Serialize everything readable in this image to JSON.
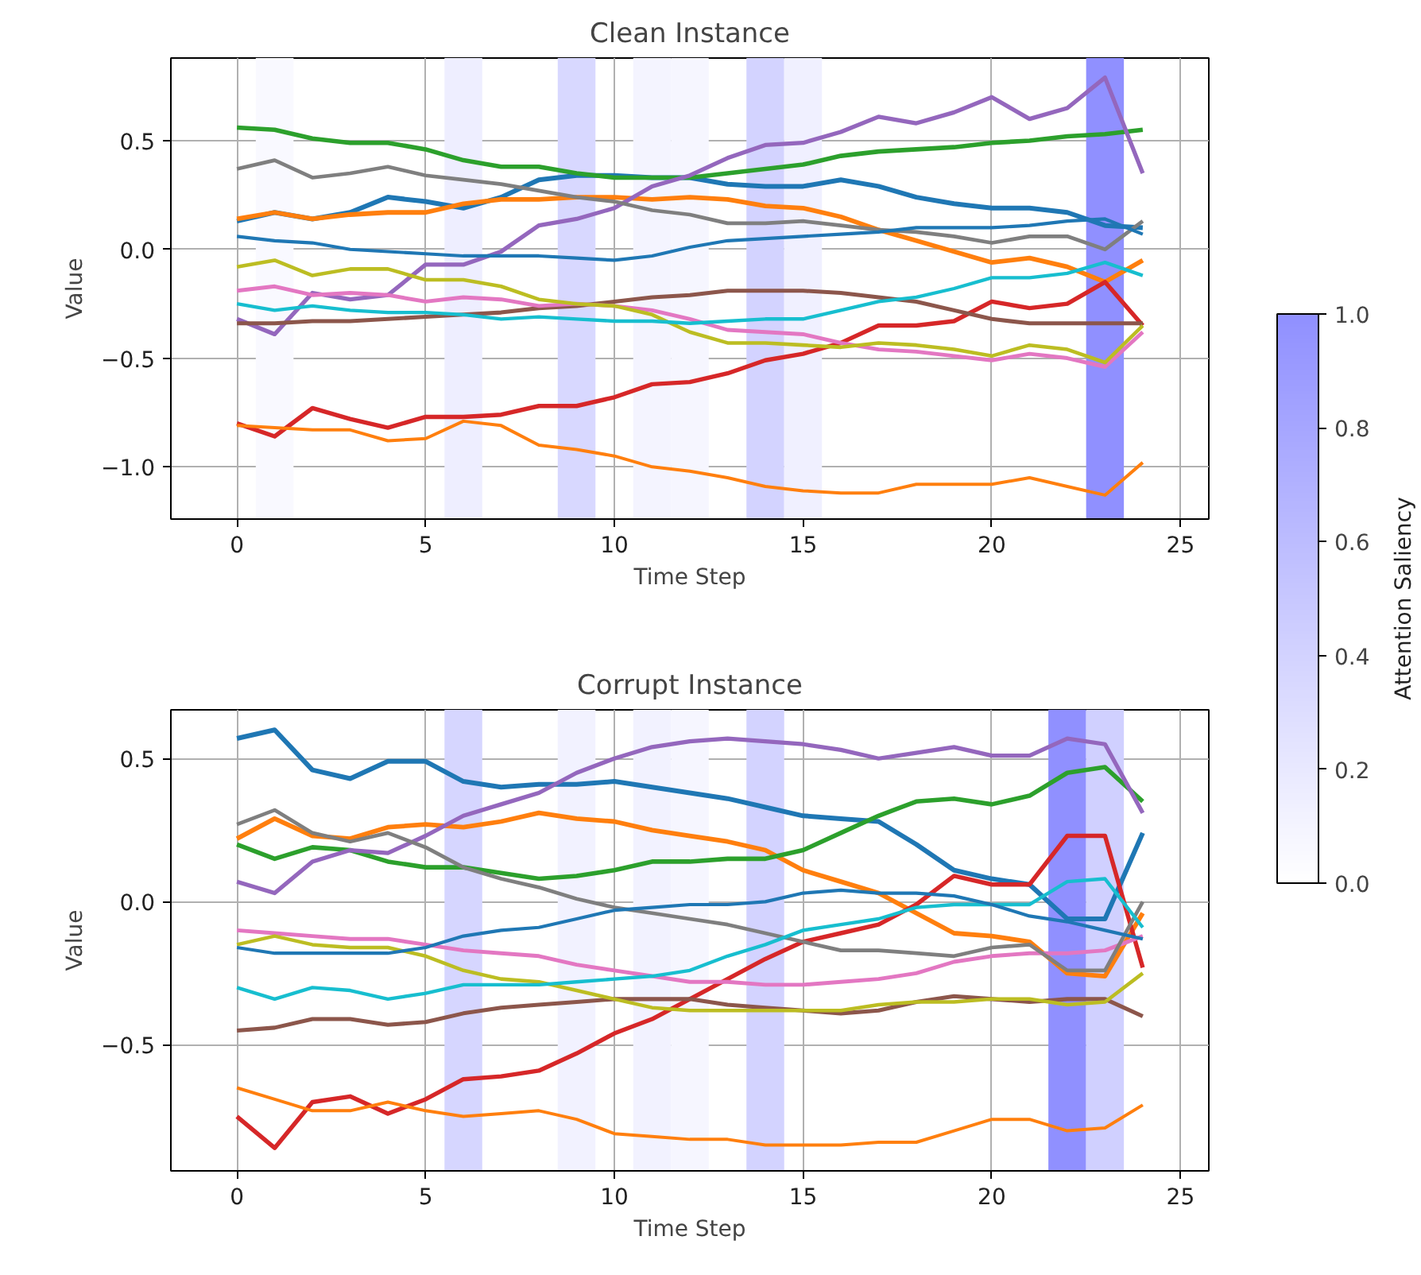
{
  "chart_data": [
    {
      "type": "line",
      "title": "Clean Instance",
      "xlabel": "Time Step",
      "ylabel": "Value",
      "clabel": "Attention Saliency",
      "clim": [
        0,
        1
      ],
      "cticks": [
        {
          "value": 0,
          "label": "0.0"
        },
        {
          "value": 0.2,
          "label": "0.2"
        },
        {
          "value": 0.4,
          "label": "0.4"
        },
        {
          "value": 0.6,
          "label": "0.6"
        },
        {
          "value": 0.8,
          "label": "0.8"
        },
        {
          "value": 1,
          "label": "1.0"
        }
      ],
      "x": [
        0,
        1,
        2,
        3,
        4,
        5,
        6,
        7,
        8,
        9,
        10,
        11,
        12,
        13,
        14,
        15,
        16,
        17,
        18,
        19,
        20,
        21,
        22,
        23,
        24
      ],
      "xlim": [
        -1.75,
        25.75
      ],
      "xticks": [
        0,
        5,
        10,
        15,
        20,
        25
      ],
      "ylim": [
        -1.24,
        0.88
      ],
      "yticks": [
        {
          "value": -1,
          "label": "−1.0"
        },
        {
          "value": -0.5,
          "label": "−0.5"
        },
        {
          "value": 0,
          "label": "0.0"
        },
        {
          "value": 0.5,
          "label": "0.5"
        }
      ],
      "grid": true,
      "line_style": "solid",
      "marker": "none",
      "bands": [
        {
          "axis": "x",
          "from": 0.5,
          "to": 1.5,
          "color": "#f9f9ff"
        },
        {
          "axis": "x",
          "from": 5.5,
          "to": 6.5,
          "color": "#eeeeff"
        },
        {
          "axis": "x",
          "from": 8.5,
          "to": 9.5,
          "color": "#d8d8ff"
        },
        {
          "axis": "x",
          "from": 10.5,
          "to": 11.5,
          "color": "#f4f4ff"
        },
        {
          "axis": "x",
          "from": 11.5,
          "to": 12.5,
          "color": "#f6f6ff"
        },
        {
          "axis": "x",
          "from": 13.5,
          "to": 14.5,
          "color": "#d3d3ff"
        },
        {
          "axis": "x",
          "from": 14.5,
          "to": 15.5,
          "color": "#f0f0ff"
        },
        {
          "axis": "x",
          "from": 22.5,
          "to": 23.5,
          "color": "#9090ff"
        }
      ],
      "series": [
        {
          "color": "#1f77b4",
          "values": [
            0.13,
            0.17,
            0.14,
            0.17,
            0.24,
            0.22,
            0.19,
            0.24,
            0.32,
            0.34,
            0.34,
            0.33,
            0.33,
            0.3,
            0.29,
            0.29,
            0.32,
            0.29,
            0.24,
            0.21,
            0.19,
            0.19,
            0.17,
            0.11,
            0.1
          ]
        },
        {
          "color": "#ff7f0e",
          "values": [
            0.14,
            0.17,
            0.14,
            0.16,
            0.17,
            0.17,
            0.21,
            0.23,
            0.23,
            0.24,
            0.24,
            0.23,
            0.24,
            0.23,
            0.2,
            0.19,
            0.15,
            0.09,
            0.04,
            -0.01,
            -0.06,
            -0.04,
            -0.08,
            -0.15,
            -0.05
          ]
        },
        {
          "color": "#2ca02c",
          "values": [
            0.56,
            0.55,
            0.51,
            0.49,
            0.49,
            0.46,
            0.41,
            0.38,
            0.38,
            0.35,
            0.33,
            0.33,
            0.33,
            0.35,
            0.37,
            0.39,
            0.43,
            0.45,
            0.46,
            0.47,
            0.49,
            0.5,
            0.52,
            0.53,
            0.55
          ]
        },
        {
          "color": "#d62728",
          "values": [
            -0.8,
            -0.86,
            -0.73,
            -0.78,
            -0.82,
            -0.77,
            -0.77,
            -0.76,
            -0.72,
            -0.72,
            -0.68,
            -0.62,
            -0.61,
            -0.57,
            -0.51,
            -0.48,
            -0.43,
            -0.35,
            -0.35,
            -0.33,
            -0.24,
            -0.27,
            -0.25,
            -0.15,
            -0.35
          ]
        },
        {
          "color": "#9467bd",
          "values": [
            -0.32,
            -0.39,
            -0.2,
            -0.23,
            -0.21,
            -0.07,
            -0.07,
            -0.01,
            0.11,
            0.14,
            0.19,
            0.29,
            0.34,
            0.42,
            0.48,
            0.49,
            0.54,
            0.61,
            0.58,
            0.63,
            0.7,
            0.6,
            0.65,
            0.79,
            0.35
          ]
        },
        {
          "color": "#8c564b",
          "values": [
            -0.34,
            -0.34,
            -0.33,
            -0.33,
            -0.32,
            -0.31,
            -0.3,
            -0.29,
            -0.27,
            -0.26,
            -0.24,
            -0.22,
            -0.21,
            -0.19,
            -0.19,
            -0.19,
            -0.2,
            -0.22,
            -0.24,
            -0.28,
            -0.32,
            -0.34,
            -0.34,
            -0.34,
            -0.34
          ]
        },
        {
          "color": "#e377c2",
          "values": [
            -0.19,
            -0.17,
            -0.21,
            -0.2,
            -0.21,
            -0.24,
            -0.22,
            -0.23,
            -0.26,
            -0.25,
            -0.26,
            -0.28,
            -0.32,
            -0.37,
            -0.38,
            -0.39,
            -0.43,
            -0.46,
            -0.47,
            -0.49,
            -0.51,
            -0.48,
            -0.5,
            -0.54,
            -0.38
          ]
        },
        {
          "color": "#7f7f7f",
          "values": [
            0.37,
            0.41,
            0.33,
            0.35,
            0.38,
            0.34,
            0.32,
            0.3,
            0.27,
            0.24,
            0.22,
            0.18,
            0.16,
            0.12,
            0.12,
            0.13,
            0.11,
            0.09,
            0.08,
            0.06,
            0.03,
            0.06,
            0.06,
            0.0,
            0.13
          ]
        },
        {
          "color": "#bcbd22",
          "values": [
            -0.08,
            -0.05,
            -0.12,
            -0.09,
            -0.09,
            -0.14,
            -0.14,
            -0.17,
            -0.23,
            -0.25,
            -0.26,
            -0.3,
            -0.38,
            -0.43,
            -0.43,
            -0.44,
            -0.45,
            -0.43,
            -0.44,
            -0.46,
            -0.49,
            -0.44,
            -0.46,
            -0.52,
            -0.35
          ]
        },
        {
          "color": "#17becf",
          "values": [
            -0.25,
            -0.28,
            -0.26,
            -0.28,
            -0.29,
            -0.29,
            -0.3,
            -0.32,
            -0.31,
            -0.32,
            -0.33,
            -0.33,
            -0.34,
            -0.33,
            -0.32,
            -0.32,
            -0.28,
            -0.24,
            -0.22,
            -0.18,
            -0.13,
            -0.13,
            -0.11,
            -0.06,
            -0.12
          ]
        },
        {
          "color": "#1f77b4",
          "values": [
            0.06,
            0.04,
            0.03,
            0.0,
            -0.01,
            -0.02,
            -0.03,
            -0.03,
            -0.03,
            -0.04,
            -0.05,
            -0.03,
            0.01,
            0.04,
            0.05,
            0.06,
            0.07,
            0.08,
            0.1,
            0.1,
            0.1,
            0.11,
            0.13,
            0.14,
            0.07
          ]
        },
        {
          "color": "#ff7f0e",
          "values": [
            -0.81,
            -0.82,
            -0.83,
            -0.83,
            -0.88,
            -0.87,
            -0.79,
            -0.81,
            -0.9,
            -0.92,
            -0.95,
            -1.0,
            -1.02,
            -1.05,
            -1.09,
            -1.11,
            -1.12,
            -1.12,
            -1.08,
            -1.08,
            -1.08,
            -1.05,
            -1.09,
            -1.13,
            -0.98
          ]
        }
      ]
    },
    {
      "type": "line",
      "title": "Corrupt Instance",
      "xlabel": "Time Step",
      "ylabel": "Value",
      "x": [
        0,
        1,
        2,
        3,
        4,
        5,
        6,
        7,
        8,
        9,
        10,
        11,
        12,
        13,
        14,
        15,
        16,
        17,
        18,
        19,
        20,
        21,
        22,
        23,
        24
      ],
      "xlim": [
        -1.75,
        25.75
      ],
      "xticks": [
        0,
        5,
        10,
        15,
        20,
        25
      ],
      "ylim": [
        -0.94,
        0.67
      ],
      "yticks": [
        {
          "value": -0.5,
          "label": "−0.5"
        },
        {
          "value": 0,
          "label": "0.0"
        },
        {
          "value": 0.5,
          "label": "0.5"
        }
      ],
      "grid": true,
      "line_style": "solid",
      "marker": "none",
      "bands": [
        {
          "axis": "x",
          "from": 5.5,
          "to": 6.5,
          "color": "#d6d6ff"
        },
        {
          "axis": "x",
          "from": 8.5,
          "to": 9.5,
          "color": "#f2f2ff"
        },
        {
          "axis": "x",
          "from": 10.5,
          "to": 11.5,
          "color": "#f2f2ff"
        },
        {
          "axis": "x",
          "from": 11.5,
          "to": 12.5,
          "color": "#f6f6ff"
        },
        {
          "axis": "x",
          "from": 13.5,
          "to": 14.5,
          "color": "#d3d3ff"
        },
        {
          "axis": "x",
          "from": 21.5,
          "to": 22.5,
          "color": "#9090ff"
        },
        {
          "axis": "x",
          "from": 22.5,
          "to": 23.5,
          "color": "#d0d0ff"
        }
      ],
      "series": [
        {
          "color": "#1f77b4",
          "values": [
            0.57,
            0.6,
            0.46,
            0.43,
            0.49,
            0.49,
            0.42,
            0.4,
            0.41,
            0.41,
            0.42,
            0.4,
            0.38,
            0.36,
            0.33,
            0.3,
            0.29,
            0.28,
            0.2,
            0.11,
            0.08,
            0.06,
            -0.06,
            -0.06,
            0.24
          ]
        },
        {
          "color": "#ff7f0e",
          "values": [
            0.22,
            0.29,
            0.23,
            0.22,
            0.26,
            0.27,
            0.26,
            0.28,
            0.31,
            0.29,
            0.28,
            0.25,
            0.23,
            0.21,
            0.18,
            0.11,
            0.07,
            0.03,
            -0.04,
            -0.11,
            -0.12,
            -0.14,
            -0.25,
            -0.26,
            -0.04
          ]
        },
        {
          "color": "#2ca02c",
          "values": [
            0.2,
            0.15,
            0.19,
            0.18,
            0.14,
            0.12,
            0.12,
            0.1,
            0.08,
            0.09,
            0.11,
            0.14,
            0.14,
            0.15,
            0.15,
            0.18,
            0.24,
            0.3,
            0.35,
            0.36,
            0.34,
            0.37,
            0.45,
            0.47,
            0.35
          ]
        },
        {
          "color": "#d62728",
          "values": [
            -0.75,
            -0.86,
            -0.7,
            -0.68,
            -0.74,
            -0.69,
            -0.62,
            -0.61,
            -0.59,
            -0.53,
            -0.46,
            -0.41,
            -0.34,
            -0.27,
            -0.2,
            -0.14,
            -0.11,
            -0.08,
            -0.01,
            0.09,
            0.06,
            0.06,
            0.23,
            0.23,
            -0.23
          ]
        },
        {
          "color": "#9467bd",
          "values": [
            0.07,
            0.03,
            0.14,
            0.18,
            0.17,
            0.23,
            0.3,
            0.34,
            0.38,
            0.45,
            0.5,
            0.54,
            0.56,
            0.57,
            0.56,
            0.55,
            0.53,
            0.5,
            0.52,
            0.54,
            0.51,
            0.51,
            0.57,
            0.55,
            0.31
          ]
        },
        {
          "color": "#8c564b",
          "values": [
            -0.45,
            -0.44,
            -0.41,
            -0.41,
            -0.43,
            -0.42,
            -0.39,
            -0.37,
            -0.36,
            -0.35,
            -0.34,
            -0.34,
            -0.34,
            -0.36,
            -0.37,
            -0.38,
            -0.39,
            -0.38,
            -0.35,
            -0.33,
            -0.34,
            -0.35,
            -0.34,
            -0.34,
            -0.4
          ]
        },
        {
          "color": "#e377c2",
          "values": [
            -0.1,
            -0.11,
            -0.12,
            -0.13,
            -0.13,
            -0.15,
            -0.17,
            -0.18,
            -0.19,
            -0.22,
            -0.24,
            -0.26,
            -0.28,
            -0.28,
            -0.29,
            -0.29,
            -0.28,
            -0.27,
            -0.25,
            -0.21,
            -0.19,
            -0.18,
            -0.18,
            -0.17,
            -0.12
          ]
        },
        {
          "color": "#7f7f7f",
          "values": [
            0.27,
            0.32,
            0.24,
            0.21,
            0.24,
            0.19,
            0.12,
            0.08,
            0.05,
            0.01,
            -0.02,
            -0.04,
            -0.06,
            -0.08,
            -0.11,
            -0.14,
            -0.17,
            -0.17,
            -0.18,
            -0.19,
            -0.16,
            -0.15,
            -0.24,
            -0.24,
            0.0
          ]
        },
        {
          "color": "#bcbd22",
          "values": [
            -0.15,
            -0.12,
            -0.15,
            -0.16,
            -0.16,
            -0.19,
            -0.24,
            -0.27,
            -0.28,
            -0.31,
            -0.34,
            -0.37,
            -0.38,
            -0.38,
            -0.38,
            -0.38,
            -0.38,
            -0.36,
            -0.35,
            -0.35,
            -0.34,
            -0.34,
            -0.36,
            -0.35,
            -0.25
          ]
        },
        {
          "color": "#17becf",
          "values": [
            -0.3,
            -0.34,
            -0.3,
            -0.31,
            -0.34,
            -0.32,
            -0.29,
            -0.29,
            -0.29,
            -0.28,
            -0.27,
            -0.26,
            -0.24,
            -0.19,
            -0.15,
            -0.1,
            -0.08,
            -0.06,
            -0.02,
            -0.01,
            -0.01,
            -0.01,
            0.07,
            0.08,
            -0.09
          ]
        },
        {
          "color": "#1f77b4",
          "values": [
            -0.16,
            -0.18,
            -0.18,
            -0.18,
            -0.18,
            -0.16,
            -0.12,
            -0.1,
            -0.09,
            -0.06,
            -0.03,
            -0.02,
            -0.01,
            -0.01,
            0.0,
            0.03,
            0.04,
            0.03,
            0.03,
            0.02,
            -0.01,
            -0.05,
            -0.07,
            -0.1,
            -0.13
          ]
        },
        {
          "color": "#ff7f0e",
          "values": [
            -0.65,
            -0.69,
            -0.73,
            -0.73,
            -0.7,
            -0.73,
            -0.75,
            -0.74,
            -0.73,
            -0.76,
            -0.81,
            -0.82,
            -0.83,
            -0.83,
            -0.85,
            -0.85,
            -0.85,
            -0.84,
            -0.84,
            -0.8,
            -0.76,
            -0.76,
            -0.8,
            -0.79,
            -0.71
          ]
        }
      ]
    }
  ]
}
